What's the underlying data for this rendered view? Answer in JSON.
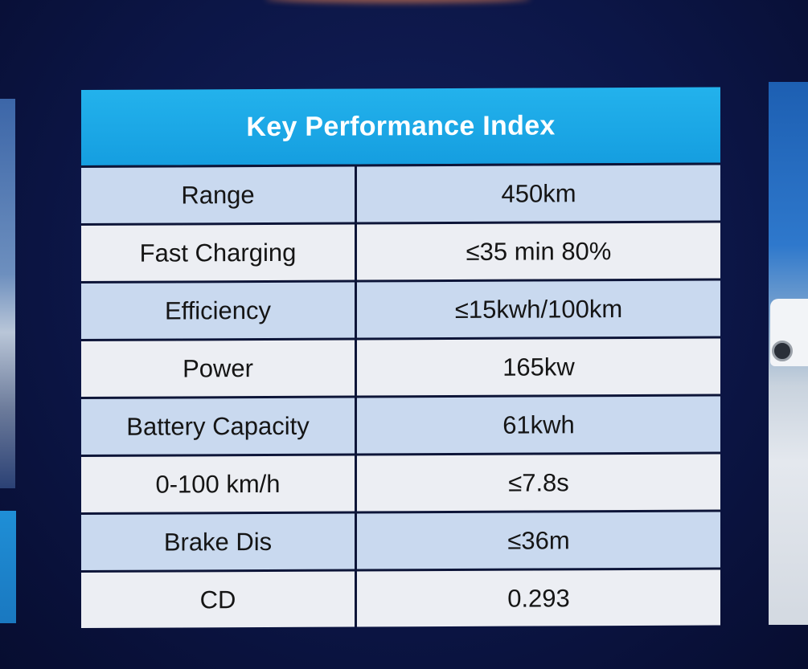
{
  "kpi_table": {
    "title": "Key Performance Index",
    "rows": [
      {
        "label": "Range",
        "value": "450km"
      },
      {
        "label": "Fast Charging",
        "value": "≤35 min  80%"
      },
      {
        "label": "Efficiency",
        "value": "≤15kwh/100km"
      },
      {
        "label": "Power",
        "value": "165kw"
      },
      {
        "label": "Battery Capacity",
        "value": "61kwh"
      },
      {
        "label": "0-100 km/h",
        "value": "≤7.8s"
      },
      {
        "label": "Brake Dis",
        "value": "≤36m"
      },
      {
        "label": "CD",
        "value": "0.293"
      }
    ]
  },
  "colors": {
    "header_blue": "#1ea8e6",
    "row_shade": "#c9d9ef",
    "row_plain": "#eceef3",
    "background": "#0c1647"
  }
}
